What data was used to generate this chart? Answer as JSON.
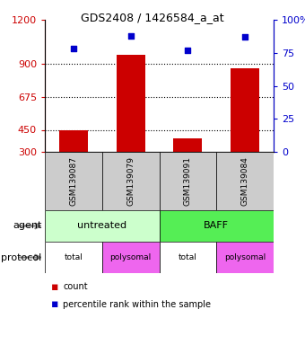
{
  "title": "GDS2408 / 1426584_a_at",
  "samples": [
    "GSM139087",
    "GSM139079",
    "GSM139091",
    "GSM139084"
  ],
  "bar_values": [
    450,
    960,
    390,
    870
  ],
  "dot_values": [
    78,
    88,
    77,
    87
  ],
  "bar_color": "#cc0000",
  "dot_color": "#0000cc",
  "ylim_left": [
    300,
    1200
  ],
  "ylim_right": [
    0,
    100
  ],
  "yticks_left": [
    300,
    450,
    675,
    900,
    1200
  ],
  "yticks_right": [
    0,
    25,
    50,
    75,
    100
  ],
  "ytick_labels_left": [
    "300",
    "450",
    "675",
    "900",
    "1200"
  ],
  "ytick_labels_right": [
    "0",
    "25",
    "50",
    "75",
    "100%"
  ],
  "hlines": [
    450,
    675,
    900
  ],
  "agent_colors": [
    "#ccffcc",
    "#55ee55"
  ],
  "protocol_labels": [
    "total",
    "polysomal",
    "total",
    "polysomal"
  ],
  "protocol_colors": [
    "#ee66ee",
    "#ee66ee",
    "#ee66ee",
    "#ee66ee"
  ],
  "legend_items": [
    "count",
    "percentile rank within the sample"
  ],
  "bg_color": "#ffffff",
  "left_tick_color": "#cc0000",
  "right_tick_color": "#0000cc",
  "table_bg": "#cccccc"
}
